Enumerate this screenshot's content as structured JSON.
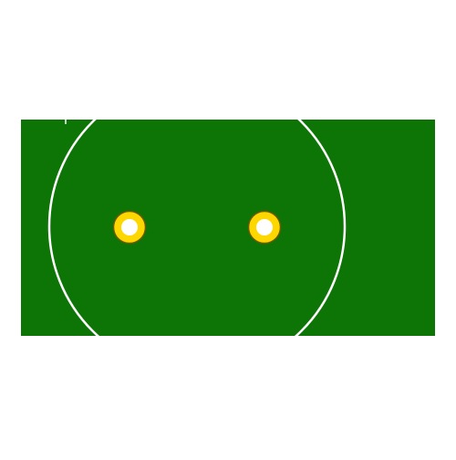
{
  "colors": {
    "background": "#ffffff",
    "board_fill": "#0d7506",
    "circle_stroke": "#ffffff",
    "pad_fill": "#ffd700",
    "pad_outline": "#6b5a00",
    "hole_fill": "#ffffff"
  },
  "elements": {
    "board": "green-board",
    "outline": "white-circle-outline",
    "pads": [
      "left-pad",
      "right-pad"
    ]
  }
}
